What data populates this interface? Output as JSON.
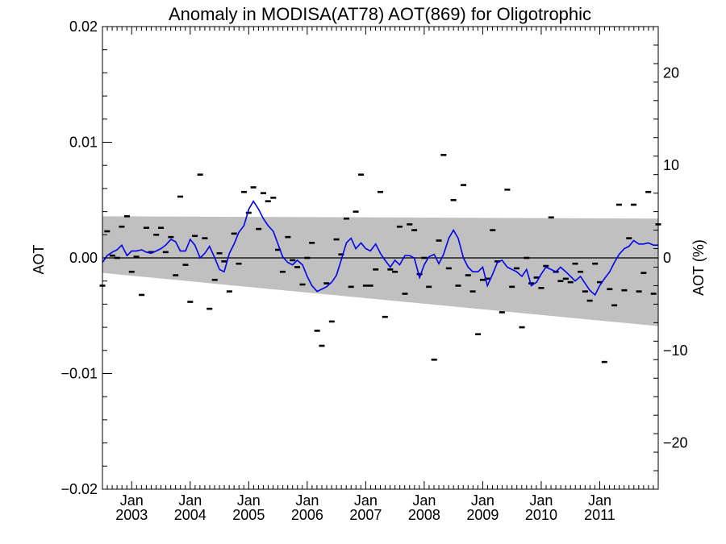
{
  "chart_data": {
    "type": "scatter",
    "title": "Anomaly in MODISA(AT78) AOT(869) for Oligotrophic",
    "ylabel": "AOT",
    "y2label": "AOT (%)",
    "xlim": [
      2002.5,
      2012.0
    ],
    "ylim": [
      -0.02,
      0.02
    ],
    "y2lim": [
      -25,
      25
    ],
    "x_ticks": [
      {
        "x": 2003.0,
        "month": "Jan",
        "year": "2003"
      },
      {
        "x": 2004.0,
        "month": "Jan",
        "year": "2004"
      },
      {
        "x": 2005.0,
        "month": "Jan",
        "year": "2005"
      },
      {
        "x": 2006.0,
        "month": "Jan",
        "year": "2006"
      },
      {
        "x": 2007.0,
        "month": "Jan",
        "year": "2007"
      },
      {
        "x": 2008.0,
        "month": "Jan",
        "year": "2008"
      },
      {
        "x": 2009.0,
        "month": "Jan",
        "year": "2009"
      },
      {
        "x": 2010.0,
        "month": "Jan",
        "year": "2010"
      },
      {
        "x": 2011.0,
        "month": "Jan",
        "year": "2011"
      }
    ],
    "y_ticks": [
      {
        "value": 0.02,
        "label": "0.02"
      },
      {
        "value": 0.01,
        "label": "0.01"
      },
      {
        "value": 0.0,
        "label": "0.00"
      },
      {
        "value": -0.01,
        "label": "−0.01"
      },
      {
        "value": -0.02,
        "label": "−0.02"
      }
    ],
    "y2_ticks": [
      {
        "value": 20,
        "label": "20"
      },
      {
        "value": 10,
        "label": "10"
      },
      {
        "value": 0,
        "label": "0"
      },
      {
        "value": -10,
        "label": "−10"
      },
      {
        "value": -20,
        "label": "−20"
      }
    ],
    "band": {
      "color": "#c0c0c0",
      "upper": [
        [
          2002.5,
          0.0036
        ],
        [
          2012.0,
          0.0034
        ]
      ],
      "lower": [
        [
          2002.5,
          -0.0013
        ],
        [
          2012.0,
          -0.0059
        ]
      ]
    },
    "zero_line": 0.0,
    "colors": {
      "line": "#0000ee",
      "points": "#000000",
      "band": "#c0c0c0"
    },
    "points": {
      "x": [
        2002.5,
        2002.58,
        2002.67,
        2002.75,
        2002.83,
        2002.92,
        2003.0,
        2003.08,
        2003.17,
        2003.25,
        2003.33,
        2003.42,
        2003.5,
        2003.58,
        2003.67,
        2003.75,
        2003.83,
        2003.92,
        2004.0,
        2004.08,
        2004.17,
        2004.25,
        2004.33,
        2004.42,
        2004.5,
        2004.58,
        2004.67,
        2004.75,
        2004.83,
        2004.92,
        2005.0,
        2005.08,
        2005.17,
        2005.25,
        2005.33,
        2005.42,
        2005.5,
        2005.58,
        2005.67,
        2005.75,
        2005.83,
        2005.92,
        2006.0,
        2006.08,
        2006.17,
        2006.25,
        2006.33,
        2006.42,
        2006.5,
        2006.58,
        2006.67,
        2006.75,
        2006.83,
        2006.92,
        2007.0,
        2007.08,
        2007.17,
        2007.25,
        2007.33,
        2007.42,
        2007.5,
        2007.58,
        2007.67,
        2007.75,
        2007.83,
        2007.92,
        2008.0,
        2008.08,
        2008.17,
        2008.25,
        2008.33,
        2008.42,
        2008.5,
        2008.58,
        2008.67,
        2008.75,
        2008.83,
        2008.92,
        2009.0,
        2009.08,
        2009.17,
        2009.25,
        2009.33,
        2009.42,
        2009.5,
        2009.58,
        2009.67,
        2009.75,
        2009.83,
        2009.92,
        2010.0,
        2010.08,
        2010.17,
        2010.25,
        2010.33,
        2010.42,
        2010.5,
        2010.58,
        2010.67,
        2010.75,
        2010.83,
        2010.92,
        2011.0,
        2011.08,
        2011.17,
        2011.25,
        2011.33,
        2011.42,
        2011.5,
        2011.58,
        2011.67,
        2011.75,
        2011.83,
        2011.92,
        2012.0
      ],
      "y": [
        -0.0024,
        0.0023,
        0.0002,
        0.0,
        0.0027,
        0.0036,
        -0.0012,
        0.0001,
        -0.0032,
        0.0026,
        0.0005,
        0.002,
        0.0026,
        0.0005,
        0.0018,
        -0.0015,
        0.0053,
        -0.0006,
        -0.0038,
        0.0019,
        0.0072,
        0.0017,
        -0.0044,
        -0.0019,
        0.0004,
        -0.0003,
        -0.0029,
        0.0021,
        -0.0005,
        0.0057,
        0.0039,
        0.0061,
        0.0025,
        0.0056,
        0.0049,
        0.0052,
        0.0007,
        -0.0012,
        0.0018,
        -0.0002,
        -0.0008,
        -0.0023,
        0.0,
        0.0013,
        -0.0063,
        -0.0076,
        -0.0022,
        -0.0055,
        0.0016,
        0.0003,
        0.0034,
        -0.0025,
        0.004,
        0.0072,
        -0.0024,
        -0.0024,
        -0.001,
        0.0057,
        -0.0051,
        -0.001,
        -0.0012,
        0.0027,
        -0.0031,
        0.0029,
        0.0024,
        -0.0014,
        0.0,
        -0.0025,
        -0.0088,
        0.0015,
        0.0089,
        -0.0009,
        0.005,
        -0.0024,
        0.0063,
        -0.0015,
        -0.0029,
        -0.0066,
        -0.0019,
        -0.0018,
        0.0024,
        -0.0003,
        -0.0047,
        0.0059,
        -0.0025,
        -0.0009,
        -0.006,
        0.0,
        -0.0022,
        -0.0017,
        -0.0026,
        -0.0007,
        0.0035,
        -0.0012,
        -0.002,
        -0.0018,
        -0.0021,
        -0.0005,
        -0.0012,
        -0.0029,
        -0.0037,
        -0.0005,
        -0.0021,
        -0.009,
        -0.0027,
        -0.0041,
        0.0046,
        -0.0028,
        0.0017,
        0.0046,
        -0.0029,
        -0.0013,
        0.0057,
        -0.0031,
        0.0029
      ]
    },
    "series": [
      {
        "x": [
          2002.5,
          2002.58,
          2002.67,
          2002.75,
          2002.83,
          2002.92,
          2003.0,
          2003.08,
          2003.17,
          2003.25,
          2003.33,
          2003.42,
          2003.5,
          2003.58,
          2003.67,
          2003.75,
          2003.83,
          2003.92,
          2004.0,
          2004.08,
          2004.17,
          2004.25,
          2004.33,
          2004.42,
          2004.5,
          2004.58,
          2004.67,
          2004.75,
          2004.83,
          2004.92,
          2005.0,
          2005.08,
          2005.17,
          2005.25,
          2005.33,
          2005.42,
          2005.5,
          2005.58,
          2005.67,
          2005.75,
          2005.83,
          2005.92,
          2006.0,
          2006.08,
          2006.17,
          2006.25,
          2006.33,
          2006.42,
          2006.5,
          2006.58,
          2006.67,
          2006.75,
          2006.83,
          2006.92,
          2007.0,
          2007.08,
          2007.17,
          2007.25,
          2007.33,
          2007.42,
          2007.5,
          2007.58,
          2007.67,
          2007.75,
          2007.83,
          2007.92,
          2008.0,
          2008.08,
          2008.17,
          2008.25,
          2008.33,
          2008.42,
          2008.5,
          2008.58,
          2008.67,
          2008.75,
          2008.83,
          2008.92,
          2009.0,
          2009.08,
          2009.17,
          2009.25,
          2009.33,
          2009.42,
          2009.5,
          2009.58,
          2009.67,
          2009.75,
          2009.83,
          2009.92,
          2010.0,
          2010.08,
          2010.17,
          2010.25,
          2010.33,
          2010.42,
          2010.5,
          2010.58,
          2010.67,
          2010.75,
          2010.83,
          2010.92,
          2011.0,
          2011.08,
          2011.17,
          2011.25,
          2011.33,
          2011.42,
          2011.5,
          2011.58,
          2011.67,
          2011.75,
          2011.83,
          2011.92,
          2012.0
        ],
        "y": [
          -0.0004,
          0.0002,
          0.0005,
          0.0007,
          0.0011,
          0.0002,
          0.0006,
          0.0006,
          0.0007,
          0.0005,
          0.0004,
          0.0006,
          0.0008,
          0.0011,
          0.0016,
          0.0014,
          0.0006,
          0.0006,
          0.0016,
          0.0011,
          0.0,
          0.0004,
          0.001,
          0.0,
          -0.001,
          -0.0012,
          0.0004,
          0.0012,
          0.0022,
          0.0028,
          0.0042,
          0.0049,
          0.0042,
          0.0034,
          0.0028,
          0.0023,
          0.0012,
          0.0001,
          -0.0004,
          -0.0006,
          -0.0002,
          -0.0006,
          -0.0016,
          -0.0024,
          -0.0029,
          -0.0027,
          -0.0025,
          -0.0021,
          -0.0015,
          -0.0002,
          0.0013,
          0.0017,
          0.0008,
          0.0013,
          0.0008,
          0.0006,
          0.0012,
          0.0004,
          -0.0002,
          -0.0008,
          -0.0002,
          -0.0006,
          0.0002,
          0.0002,
          0.0,
          -0.0017,
          -0.0006,
          0.0001,
          0.0003,
          -0.0005,
          0.0003,
          0.0017,
          0.0024,
          0.0017,
          0.0,
          -0.0008,
          -0.0012,
          -0.0012,
          -0.0008,
          -0.0024,
          -0.0014,
          -0.0004,
          -0.0002,
          -0.0008,
          -0.001,
          -0.0012,
          -0.0016,
          -0.001,
          -0.0024,
          -0.0021,
          -0.0014,
          -0.0008,
          -0.001,
          -0.0012,
          -0.0008,
          -0.0012,
          -0.0016,
          -0.002,
          -0.0016,
          -0.0022,
          -0.0028,
          -0.0032,
          -0.0024,
          -0.0018,
          -0.0012,
          -0.0004,
          0.0003,
          0.0008,
          0.001,
          0.0015,
          0.0012,
          0.0012,
          0.0013,
          0.0011,
          0.0011
        ]
      }
    ]
  }
}
